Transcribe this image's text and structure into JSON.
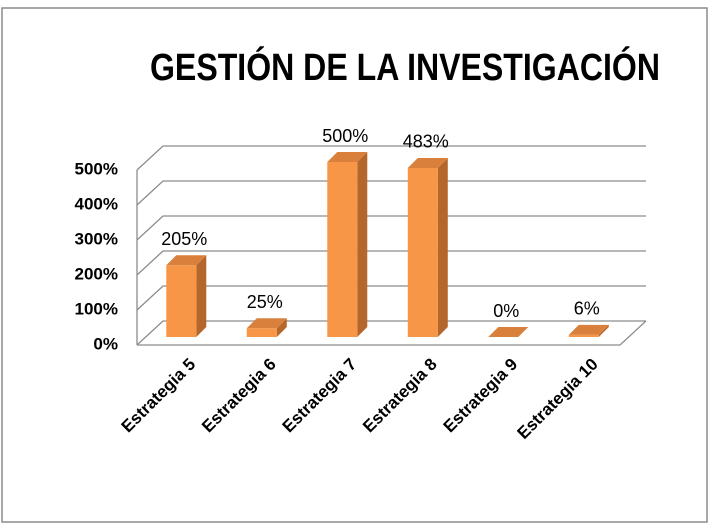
{
  "chart_data": {
    "type": "bar3d",
    "title": "GESTIÓN DE LA INVESTIGACIÓN",
    "categories": [
      "Estrategia 5",
      "Estrategia 6",
      "Estrategia 7",
      "Estrategia 8",
      "Estrategia 9",
      "Estrategia 10"
    ],
    "values": [
      205,
      25,
      500,
      483,
      0,
      6
    ],
    "value_labels": [
      "205%",
      "25%",
      "500%",
      "483%",
      "0%",
      "6%"
    ],
    "color": "#f79646",
    "ylim": [
      0,
      500
    ],
    "yticks": [
      {
        "value": 0,
        "label": "0%"
      },
      {
        "value": 100,
        "label": "100%"
      },
      {
        "value": 200,
        "label": "200%"
      },
      {
        "value": 300,
        "label": "300%"
      },
      {
        "value": 400,
        "label": "400%"
      },
      {
        "value": 500,
        "label": "500%"
      }
    ],
    "grid": true
  }
}
